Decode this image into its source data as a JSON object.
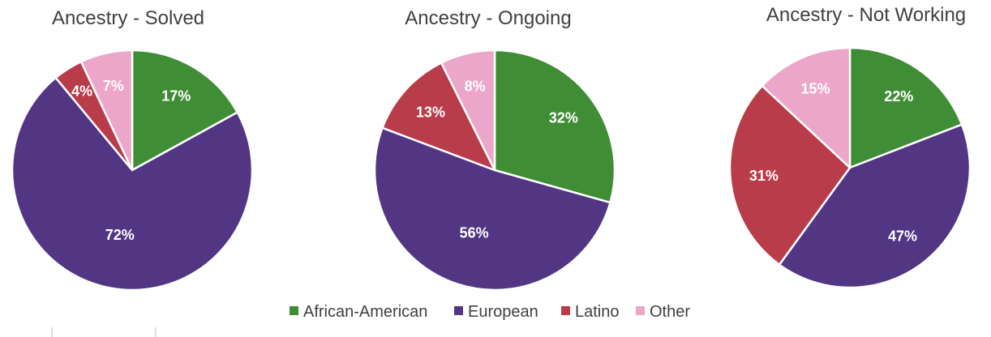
{
  "colors": {
    "African-American": "#3f8d35",
    "European": "#523684",
    "Latino": "#b83c49",
    "Other": "#eca6c9"
  },
  "legend": [
    "African-American",
    "European",
    "Latino",
    "Other"
  ],
  "chart_data": [
    {
      "type": "pie",
      "title": "Ancestry - Solved",
      "slices": [
        {
          "label": "African-American",
          "value": 17,
          "text": "17%"
        },
        {
          "label": "European",
          "value": 72,
          "text": "72%"
        },
        {
          "label": "Latino",
          "value": 4,
          "text": "4%"
        },
        {
          "label": "Other",
          "value": 7,
          "text": "7%"
        }
      ]
    },
    {
      "type": "pie",
      "title": "Ancestry - Ongoing",
      "slices": [
        {
          "label": "African-American",
          "value": 32,
          "text": "32%"
        },
        {
          "label": "European",
          "value": 56,
          "text": "56%"
        },
        {
          "label": "Latino",
          "value": 13,
          "text": "13%"
        },
        {
          "label": "Other",
          "value": 8,
          "text": "8%"
        }
      ]
    },
    {
      "type": "pie",
      "title": "Ancestry - Not Working",
      "slices": [
        {
          "label": "African-American",
          "value": 22,
          "text": "22%"
        },
        {
          "label": "European",
          "value": 47,
          "text": "47%"
        },
        {
          "label": "Latino",
          "value": 31,
          "text": "31%"
        },
        {
          "label": "Other",
          "value": 15,
          "text": "15%"
        }
      ]
    }
  ]
}
